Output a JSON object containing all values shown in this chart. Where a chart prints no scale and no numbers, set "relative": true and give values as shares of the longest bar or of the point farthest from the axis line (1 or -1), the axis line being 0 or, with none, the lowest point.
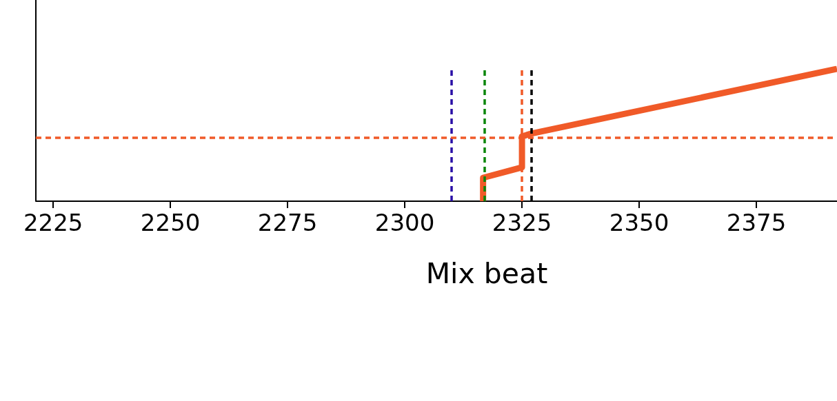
{
  "chart_data": {
    "type": "line",
    "xlabel": "Mix beat",
    "x": [
      2316.7,
      2316.7,
      2325,
      2325,
      2327,
      2392.2
    ],
    "series": [
      {
        "color": "#f05a28",
        "values": [
          0,
          0.177,
          0.256,
          0.489,
          0.511,
          1
        ]
      }
    ],
    "relative": true,
    "xlim": [
      2221.3,
      2392.2
    ],
    "xticks": [
      2225,
      2250,
      2275,
      2300,
      2325,
      2350,
      2375
    ],
    "ref_lines": [
      {
        "axis": "x",
        "value": 2310,
        "color": "#2a0fa6",
        "line_style": "dashed"
      },
      {
        "axis": "x",
        "value": 2317,
        "color": "#0a860a",
        "line_style": "dashed"
      },
      {
        "axis": "x",
        "value": 2325,
        "color": "#f05a28",
        "line_style": "dashed"
      },
      {
        "axis": "x",
        "value": 2327,
        "color": "#000000",
        "line_style": "dashed"
      },
      {
        "axis": "y",
        "value": 0.481,
        "color": "#f05a28",
        "line_style": "dashed"
      }
    ],
    "grid": false,
    "marker": "none",
    "line_style": "solid"
  }
}
